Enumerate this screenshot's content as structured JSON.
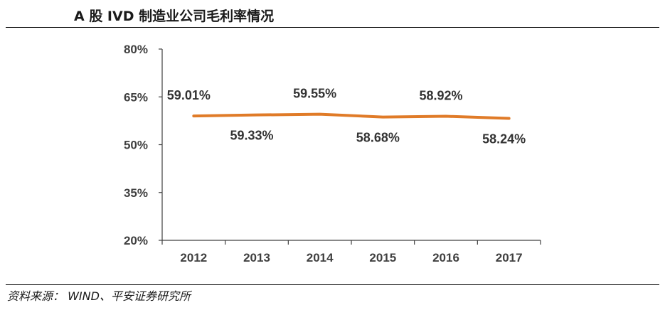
{
  "title": "A 股 IVD 制造业公司毛利率情况",
  "source": {
    "label": "资料来源：",
    "text": "WIND、平安证券研究所"
  },
  "colors": {
    "line": "#E07B28",
    "axis": "#404040",
    "text": "#333333"
  },
  "chart_data": {
    "type": "line",
    "title": "A 股 IVD 制造业公司毛利率情况",
    "xlabel": "",
    "ylabel": "",
    "categories": [
      "2012",
      "2013",
      "2014",
      "2015",
      "2016",
      "2017"
    ],
    "series": [
      {
        "values": [
          59.01,
          59.33,
          59.55,
          58.68,
          58.92,
          58.24
        ],
        "labels": [
          "59.01%",
          "59.33%",
          "59.55%",
          "58.68%",
          "58.92%",
          "58.24%"
        ]
      }
    ],
    "ylim": [
      20,
      80
    ],
    "yticks": [
      80,
      65,
      50,
      35,
      20
    ],
    "ytick_labels": [
      "80%",
      "65%",
      "50%",
      "35%",
      "20%"
    ],
    "grid": false,
    "legend": "none"
  }
}
